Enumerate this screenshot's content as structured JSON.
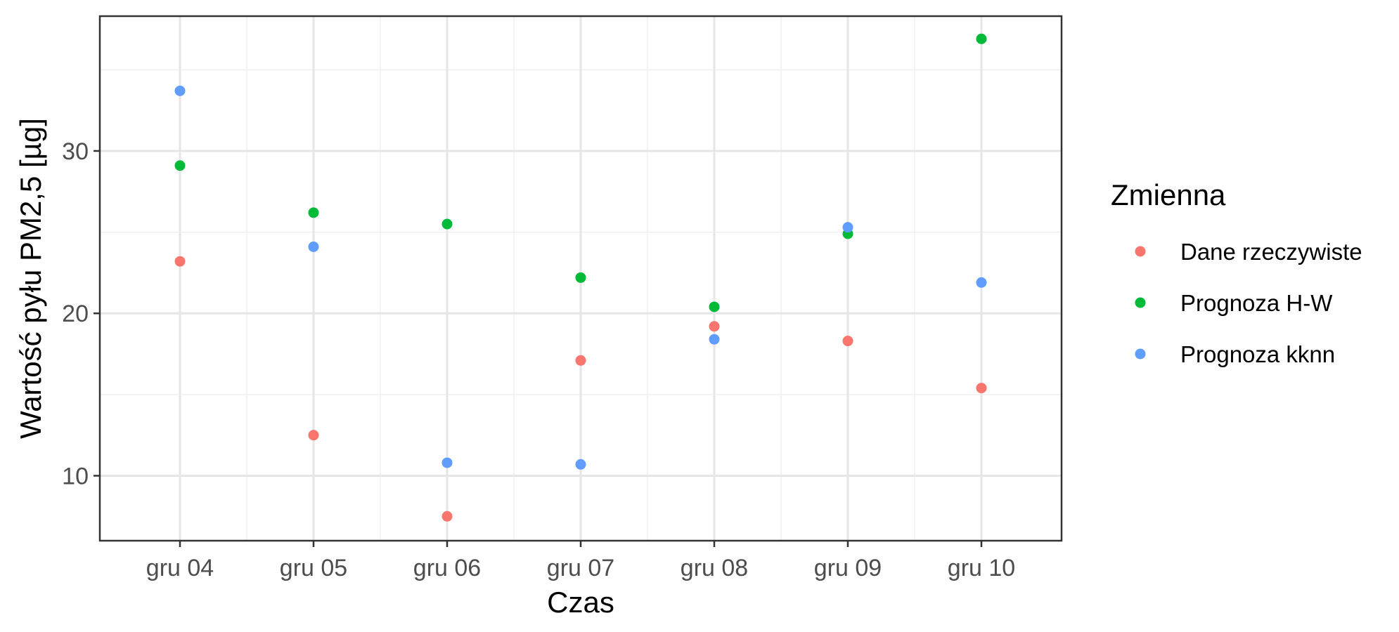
{
  "chart_data": {
    "type": "scatter",
    "categories": [
      "gru 04",
      "gru 05",
      "gru 06",
      "gru 07",
      "gru 08",
      "gru 09",
      "gru 10"
    ],
    "xlabel": "Czas",
    "ylabel": "Wartość pyłu PM2,5 [µg]",
    "ylim": [
      6,
      38.3
    ],
    "yticks": [
      10,
      20,
      30
    ],
    "yminor": [
      15,
      25,
      35
    ],
    "grid": true,
    "legend": {
      "title": "Zmienna",
      "placement": "right"
    },
    "series": [
      {
        "name": "Dane rzeczywiste",
        "color": "#F8766D",
        "values": [
          23.2,
          12.5,
          7.5,
          17.1,
          19.2,
          18.3,
          15.4
        ]
      },
      {
        "name": "Prognoza H-W",
        "color": "#00BA38",
        "values": [
          29.1,
          26.2,
          25.5,
          22.2,
          20.4,
          24.9,
          36.9
        ]
      },
      {
        "name": "Prognoza kknn",
        "color": "#619CFF",
        "values": [
          33.7,
          24.1,
          10.8,
          10.7,
          18.4,
          25.3,
          21.9
        ]
      }
    ]
  }
}
